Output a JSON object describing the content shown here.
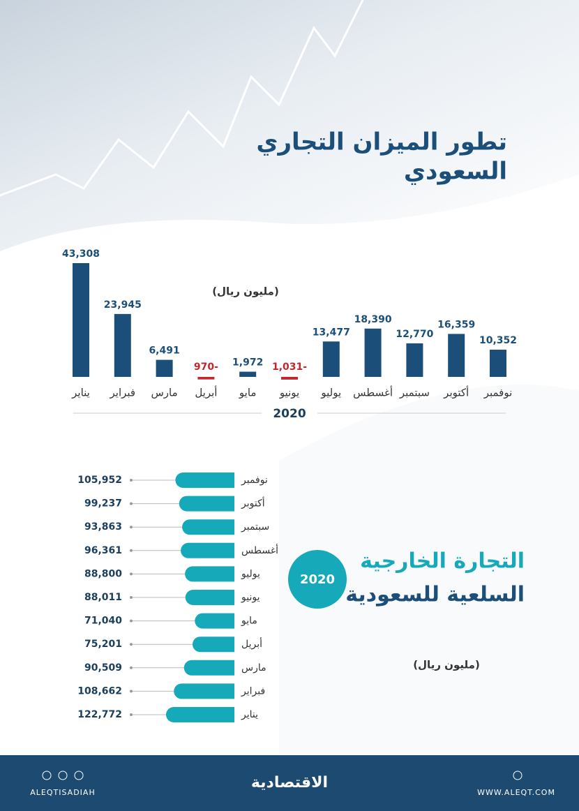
{
  "chart_data": [
    {
      "type": "bar",
      "title_line1": "تطور الميزان التجاري",
      "title_line2": "السعودي",
      "unit": "(مليون ريال)",
      "x_label": "2020",
      "categories": [
        "يناير",
        "فبراير",
        "مارس",
        "أبريل",
        "مايو",
        "يونيو",
        "يوليو",
        "أغسطس",
        "سبتمبر",
        "أكتوبر",
        "نوفمبر"
      ],
      "values": [
        43308,
        23945,
        6491,
        -970,
        1972,
        -1031,
        13477,
        18390,
        12770,
        16359,
        10352
      ],
      "value_labels": [
        "43,308",
        "23,945",
        "6,491",
        "970-",
        "1,972",
        "1,031-",
        "13,477",
        "18,390",
        "12,770",
        "16,359",
        "10,352"
      ],
      "color": "#1b4f7a",
      "negative_color": "#c1272d"
    },
    {
      "type": "hbar",
      "title_line1": "التجارة الخارجية",
      "title_line2": "السلعية للسعودية",
      "badge": "2020",
      "unit": "(مليون ريال)",
      "categories": [
        "نوفمبر",
        "أكتوبر",
        "سبتمبر",
        "أغسطس",
        "يوليو",
        "يونيو",
        "مايو",
        "أبريل",
        "مارس",
        "فبراير",
        "يناير"
      ],
      "values": [
        105952,
        99237,
        93863,
        96361,
        88800,
        88011,
        71040,
        75201,
        90509,
        108662,
        122772
      ],
      "value_labels": [
        "105,952",
        "99,237",
        "93,863",
        "96,361",
        "88,800",
        "88,011",
        "71,040",
        "75,201",
        "90,509",
        "108,662",
        "122,772"
      ],
      "color": "#16a9b9"
    }
  ],
  "footer": {
    "handle": "ALEQTISADIAH",
    "brand": "الاقتصادية",
    "site": "WWW.ALEQT.COM"
  }
}
